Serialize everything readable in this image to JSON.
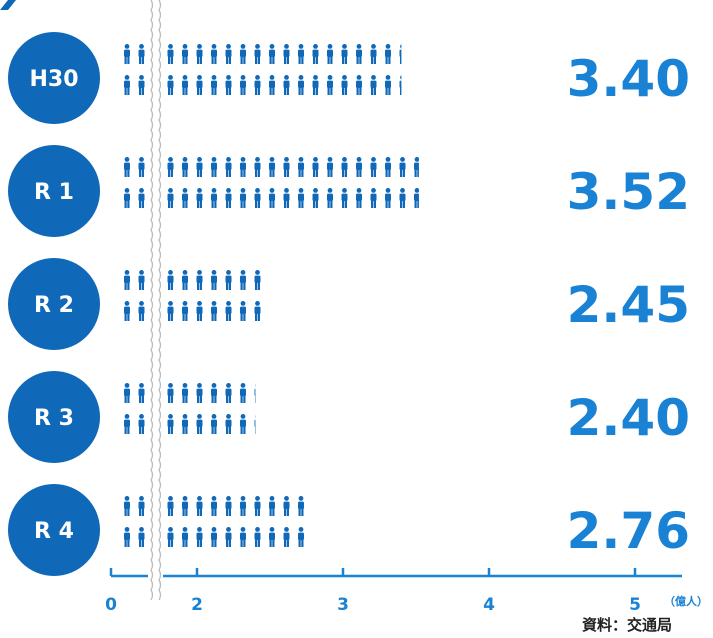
{
  "chart_data": {
    "type": "bar",
    "categories": [
      "H30",
      "R 1",
      "R 2",
      "R 3",
      "R 4"
    ],
    "values": [
      3.4,
      3.52,
      2.45,
      2.4,
      2.76
    ],
    "value_labels": [
      "3.40",
      "3.52",
      "2.45",
      "2.40",
      "2.76"
    ],
    "x_ticks": [
      "0",
      "2",
      "3",
      "4",
      "5"
    ],
    "x_tick_values": [
      0,
      2,
      3,
      4,
      5
    ],
    "unit": "（億人）",
    "axis_break": true,
    "colors": {
      "accent": "#1068b8",
      "value": "#1a82d4",
      "axis": "#1a82d4",
      "break": "#bbbbbb"
    }
  },
  "source": "資料：交通局"
}
